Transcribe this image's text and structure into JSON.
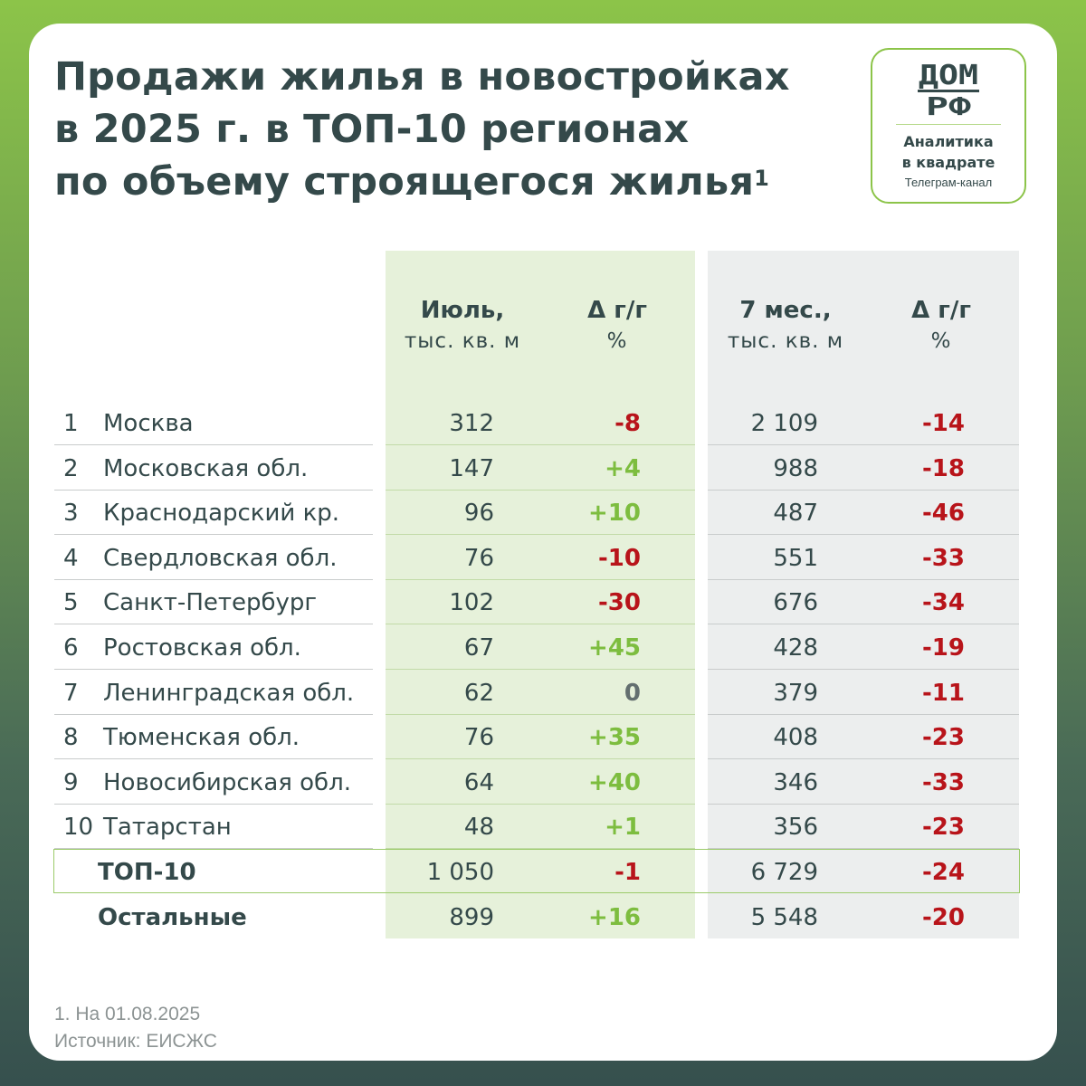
{
  "title": {
    "line1": "Продажи жилья в новостройках",
    "line2": "в 2025 г. в ТОП-10 регионах",
    "line3": "по объему строящегося жилья",
    "footnote_mark": "1"
  },
  "logo": {
    "brand_top": "ДОМ",
    "brand_bottom": "РФ",
    "line1": "Аналитика",
    "line2": "в квадрате",
    "line3": "Телеграм-канал",
    "accent_color": "#8cc449"
  },
  "headers": {
    "july_bold": "Июль,",
    "july_unit": "тыс. кв. м",
    "delta_bold": "Δ г/г",
    "delta_unit": "%",
    "m7_bold": "7 мес.,",
    "m7_unit": "тыс. кв. м",
    "delta2_bold": "Δ г/г",
    "delta2_unit": "%"
  },
  "rows": [
    {
      "num": "1",
      "name": "Москва",
      "july": "312",
      "july_delta": "-8",
      "m7": "2 109",
      "m7_delta": "-14"
    },
    {
      "num": "2",
      "name": "Московская обл.",
      "july": "147",
      "july_delta": "+4",
      "m7": "988",
      "m7_delta": "-18"
    },
    {
      "num": "3",
      "name": "Краснодарский кр.",
      "july": "96",
      "july_delta": "+10",
      "m7": "487",
      "m7_delta": "-46"
    },
    {
      "num": "4",
      "name": "Свердловская обл.",
      "july": "76",
      "july_delta": "-10",
      "m7": "551",
      "m7_delta": "-33"
    },
    {
      "num": "5",
      "name": "Санкт-Петербург",
      "july": "102",
      "july_delta": "-30",
      "m7": "676",
      "m7_delta": "-34"
    },
    {
      "num": "6",
      "name": "Ростовская обл.",
      "july": "67",
      "july_delta": "+45",
      "m7": "428",
      "m7_delta": "-19"
    },
    {
      "num": "7",
      "name": "Ленинградская обл.",
      "july": "62",
      "july_delta": "0",
      "m7": "379",
      "m7_delta": "-11"
    },
    {
      "num": "8",
      "name": "Тюменская обл.",
      "july": "76",
      "july_delta": "+35",
      "m7": "408",
      "m7_delta": "-23"
    },
    {
      "num": "9",
      "name": "Новосибирская обл.",
      "july": "64",
      "july_delta": "+40",
      "m7": "346",
      "m7_delta": "-33"
    },
    {
      "num": "10",
      "name": "Татарстан",
      "july": "48",
      "july_delta": "+1",
      "m7": "356",
      "m7_delta": "-23"
    }
  ],
  "totals": [
    {
      "name": "ТОП-10",
      "july": "1 050",
      "july_delta": "-1",
      "m7": "6 729",
      "m7_delta": "-24"
    },
    {
      "name": "Остальные",
      "july": "899",
      "july_delta": "+16",
      "m7": "5 548",
      "m7_delta": "-20"
    }
  ],
  "colors": {
    "positive": "#7dbd3f",
    "negative": "#b8141a",
    "neutral": "#636f6f",
    "text": "#34494a"
  },
  "footer": {
    "note": "1. На 01.08.2025",
    "source": "Источник: ЕИСЖС"
  }
}
